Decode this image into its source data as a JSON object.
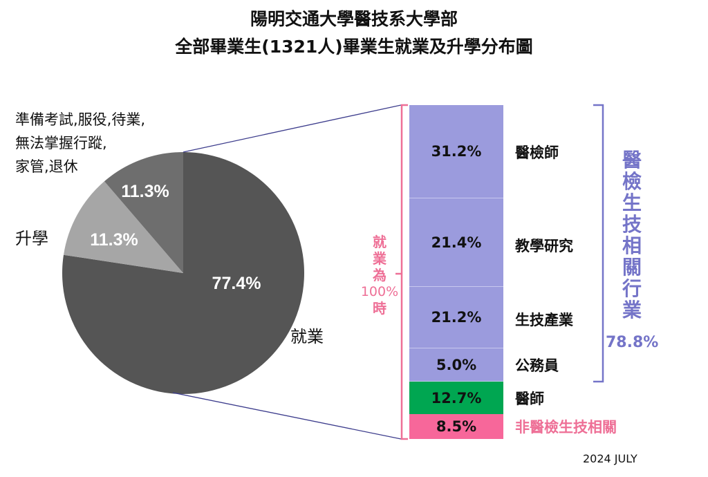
{
  "title_line1": "陽明交通大學醫技系大學部",
  "title_line2": "全部畢業生(1321人)畢業生就業及升學分布圖",
  "footer": "2024 JULY",
  "chart_data": [
    {
      "type": "pie",
      "slices": [
        {
          "label": "就業",
          "value": 77.4,
          "data_label": "77.4%",
          "color": "#555555"
        },
        {
          "label": "升學",
          "value": 11.3,
          "data_label": "11.3%",
          "color": "#a6a6a6"
        },
        {
          "label": "準備考試,服役,待業,無法掌握行蹤,家管,退休",
          "label_lines": [
            "準備考試,服役,待業,",
            "無法掌握行蹤,",
            "家管,退休"
          ],
          "value": 11.3,
          "data_label": "11.3%",
          "color": "#6e6e6e"
        }
      ]
    },
    {
      "type": "bar",
      "stacked": true,
      "note": "就業為100%時",
      "note_lines": [
        "就",
        "業",
        "為",
        "100%",
        "時"
      ],
      "categories": [
        "醫檢師",
        "教學研究",
        "生技產業",
        "公務員",
        "醫師",
        "非醫檢生技相關"
      ],
      "values": [
        31.2,
        21.4,
        21.2,
        5.0,
        12.7,
        8.5
      ],
      "data_labels": [
        "31.2%",
        "21.4%",
        "21.2%",
        "5.0%",
        "12.7%",
        "8.5%"
      ],
      "colors": [
        "#9b9bdd",
        "#9b9bdd",
        "#9b9bdd",
        "#9b9bdd",
        "#00a651",
        "#f7679a"
      ],
      "group": {
        "label": "醫檢生技相關行業",
        "label_chars": [
          "醫",
          "檢",
          "生",
          "技",
          "相",
          "關",
          "行",
          "業"
        ],
        "total": "78.8%",
        "color": "#7474c8"
      },
      "accent_pink": "#ee6f96"
    }
  ]
}
